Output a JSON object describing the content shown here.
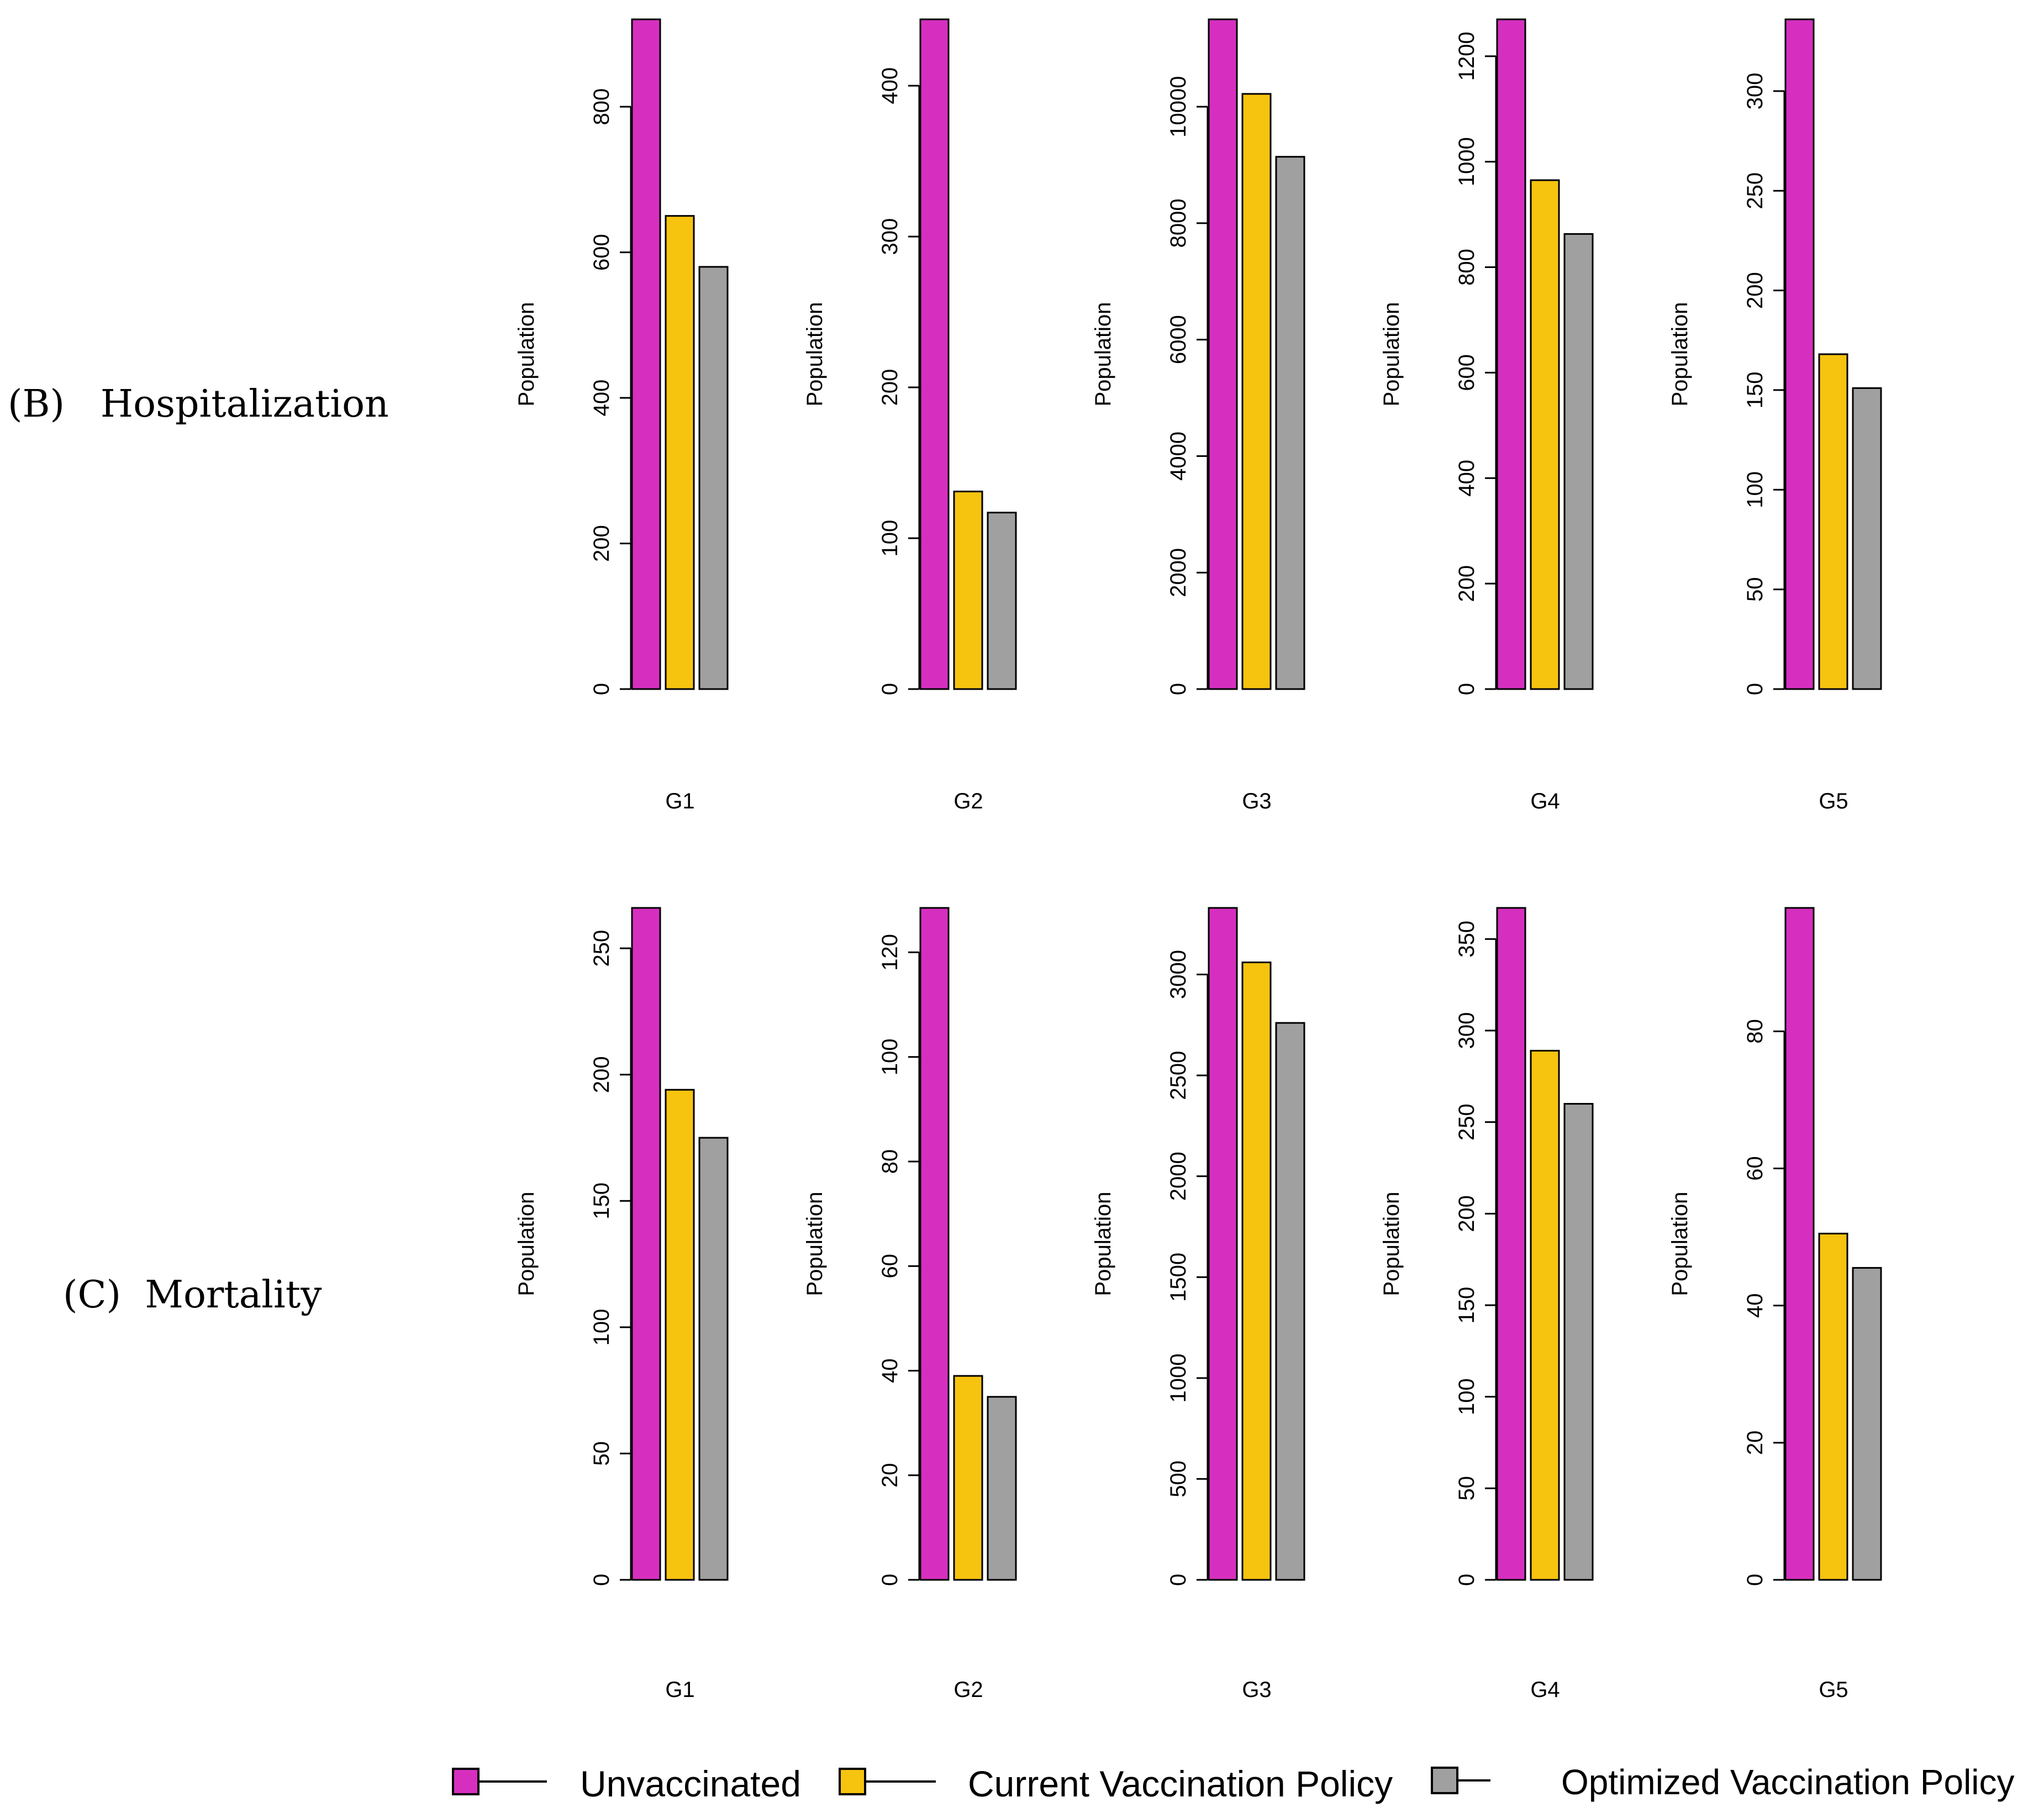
{
  "series_colors": [
    "#d62fbf",
    "#f6c30f",
    "#a0a0a0"
  ],
  "legend": {
    "items": [
      {
        "label": "Unvaccinated",
        "color": "#d62fbf"
      },
      {
        "label": "Current Vaccination Policy",
        "color": "#f6c30f"
      },
      {
        "label": "Optimized Vaccination Policy",
        "color": "#a0a0a0"
      }
    ]
  },
  "rows": [
    {
      "label": "(B)   Hospitalization"
    },
    {
      "label": "(C)  Mortality"
    }
  ],
  "chart_data": [
    {
      "type": "bar",
      "row": 0,
      "title": "",
      "xlabel": "G1",
      "ylabel": "Population",
      "ylim": [
        0,
        920
      ],
      "yticks": [
        0,
        200,
        400,
        600,
        800
      ],
      "series": [
        {
          "name": "Unvaccinated",
          "values": [
            920
          ]
        },
        {
          "name": "Current Vaccination Policy",
          "values": [
            650
          ]
        },
        {
          "name": "Optimized Vaccination Policy",
          "values": [
            580
          ]
        }
      ]
    },
    {
      "type": "bar",
      "row": 0,
      "title": "",
      "xlabel": "G2",
      "ylabel": "Population",
      "ylim": [
        0,
        444
      ],
      "yticks": [
        0,
        100,
        200,
        300,
        400
      ],
      "series": [
        {
          "name": "Unvaccinated",
          "values": [
            444
          ]
        },
        {
          "name": "Current Vaccination Policy",
          "values": [
            131
          ]
        },
        {
          "name": "Optimized Vaccination Policy",
          "values": [
            117
          ]
        }
      ]
    },
    {
      "type": "bar",
      "row": 0,
      "title": "",
      "xlabel": "G3",
      "ylabel": "Population",
      "ylim": [
        0,
        11500
      ],
      "yticks": [
        0,
        2000,
        4000,
        6000,
        8000,
        10000
      ],
      "series": [
        {
          "name": "Unvaccinated",
          "values": [
            11500
          ]
        },
        {
          "name": "Current Vaccination Policy",
          "values": [
            10220
          ]
        },
        {
          "name": "Optimized Vaccination Policy",
          "values": [
            9140
          ]
        }
      ]
    },
    {
      "type": "bar",
      "row": 0,
      "title": "",
      "xlabel": "G4",
      "ylabel": "Population",
      "ylim": [
        0,
        1270
      ],
      "yticks": [
        0,
        200,
        400,
        600,
        800,
        1000,
        1200
      ],
      "series": [
        {
          "name": "Unvaccinated",
          "values": [
            1270
          ]
        },
        {
          "name": "Current Vaccination Policy",
          "values": [
            965
          ]
        },
        {
          "name": "Optimized Vaccination Policy",
          "values": [
            863
          ]
        }
      ]
    },
    {
      "type": "bar",
      "row": 0,
      "title": "",
      "xlabel": "G5",
      "ylabel": "Population",
      "ylim": [
        0,
        336
      ],
      "yticks": [
        0,
        50,
        100,
        150,
        200,
        250,
        300
      ],
      "series": [
        {
          "name": "Unvaccinated",
          "values": [
            336
          ]
        },
        {
          "name": "Current Vaccination Policy",
          "values": [
            168
          ]
        },
        {
          "name": "Optimized Vaccination Policy",
          "values": [
            151
          ]
        }
      ]
    },
    {
      "type": "bar",
      "row": 1,
      "title": "",
      "xlabel": "G1",
      "ylabel": "Population",
      "ylim": [
        0,
        266
      ],
      "yticks": [
        0,
        50,
        100,
        150,
        200,
        250
      ],
      "series": [
        {
          "name": "Unvaccinated",
          "values": [
            266
          ]
        },
        {
          "name": "Current Vaccination Policy",
          "values": [
            194
          ]
        },
        {
          "name": "Optimized Vaccination Policy",
          "values": [
            175
          ]
        }
      ]
    },
    {
      "type": "bar",
      "row": 1,
      "title": "",
      "xlabel": "G2",
      "ylabel": "Population",
      "ylim": [
        0,
        128.5
      ],
      "yticks": [
        0,
        20,
        40,
        60,
        80,
        100,
        120
      ],
      "series": [
        {
          "name": "Unvaccinated",
          "values": [
            128.5
          ]
        },
        {
          "name": "Current Vaccination Policy",
          "values": [
            39
          ]
        },
        {
          "name": "Optimized Vaccination Policy",
          "values": [
            35
          ]
        }
      ]
    },
    {
      "type": "bar",
      "row": 1,
      "title": "",
      "xlabel": "G3",
      "ylabel": "Population",
      "ylim": [
        0,
        3330
      ],
      "yticks": [
        0,
        500,
        1000,
        1500,
        2000,
        2500,
        3000
      ],
      "series": [
        {
          "name": "Unvaccinated",
          "values": [
            3330
          ]
        },
        {
          "name": "Current Vaccination Policy",
          "values": [
            3060
          ]
        },
        {
          "name": "Optimized Vaccination Policy",
          "values": [
            2760
          ]
        }
      ]
    },
    {
      "type": "bar",
      "row": 1,
      "title": "",
      "xlabel": "G4",
      "ylabel": "Population",
      "ylim": [
        0,
        367
      ],
      "yticks": [
        0,
        50,
        100,
        150,
        200,
        250,
        300,
        350
      ],
      "series": [
        {
          "name": "Unvaccinated",
          "values": [
            367
          ]
        },
        {
          "name": "Current Vaccination Policy",
          "values": [
            289
          ]
        },
        {
          "name": "Optimized Vaccination Policy",
          "values": [
            260
          ]
        }
      ]
    },
    {
      "type": "bar",
      "row": 1,
      "title": "",
      "xlabel": "G5",
      "ylabel": "Population",
      "ylim": [
        0,
        98
      ],
      "yticks": [
        0,
        20,
        40,
        60,
        80
      ],
      "series": [
        {
          "name": "Unvaccinated",
          "values": [
            98
          ]
        },
        {
          "name": "Current Vaccination Policy",
          "values": [
            50.5
          ]
        },
        {
          "name": "Optimized Vaccination Policy",
          "values": [
            45.5
          ]
        }
      ]
    }
  ]
}
